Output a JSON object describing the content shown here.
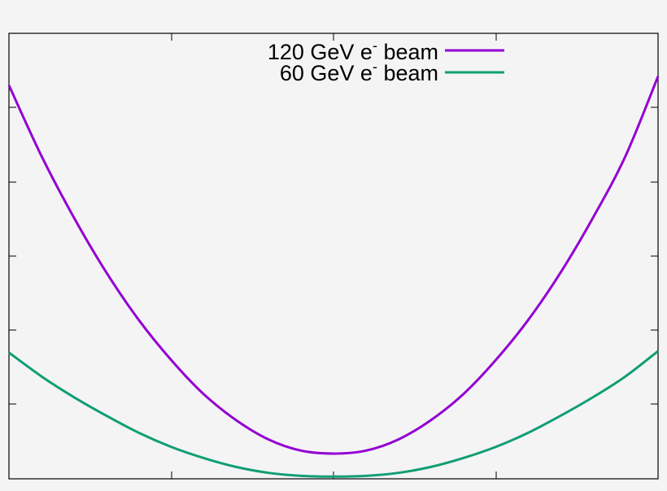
{
  "chart_data": {
    "type": "line",
    "title": "",
    "xlabel": "",
    "ylabel": "",
    "xlim": [
      -1,
      1
    ],
    "ylim": [
      0,
      6
    ],
    "grid": false,
    "legend_position": "top-right",
    "tick_labels_shown": false,
    "series": [
      {
        "name_parts": [
          "120 GeV e",
          "-",
          " beam"
        ],
        "name": "120 GeV e- beam",
        "color": "#9400d3",
        "x": [
          -1.0,
          -0.9,
          -0.8,
          -0.7,
          -0.6,
          -0.5,
          -0.4,
          -0.3,
          -0.2,
          -0.1,
          0.0,
          0.1,
          0.2,
          0.3,
          0.4,
          0.5,
          0.6,
          0.7,
          0.8,
          0.9,
          1.0
        ],
        "y": [
          5.3,
          4.35,
          3.52,
          2.78,
          2.14,
          1.6,
          1.14,
          0.79,
          0.53,
          0.38,
          0.34,
          0.38,
          0.53,
          0.79,
          1.14,
          1.6,
          2.14,
          2.78,
          3.52,
          4.35,
          5.42
        ]
      },
      {
        "name_parts": [
          "60 GeV e",
          "-",
          " beam"
        ],
        "name": "60 GeV e- beam",
        "color": "#109e74",
        "x": [
          -1.0,
          -0.9,
          -0.8,
          -0.7,
          -0.6,
          -0.5,
          -0.4,
          -0.3,
          -0.2,
          -0.1,
          0.0,
          0.1,
          0.2,
          0.3,
          0.4,
          0.5,
          0.6,
          0.7,
          0.8,
          0.9,
          1.0
        ],
        "y": [
          1.7,
          1.38,
          1.1,
          0.85,
          0.62,
          0.43,
          0.28,
          0.16,
          0.08,
          0.04,
          0.03,
          0.04,
          0.08,
          0.16,
          0.28,
          0.43,
          0.62,
          0.85,
          1.1,
          1.38,
          1.72
        ]
      }
    ]
  }
}
